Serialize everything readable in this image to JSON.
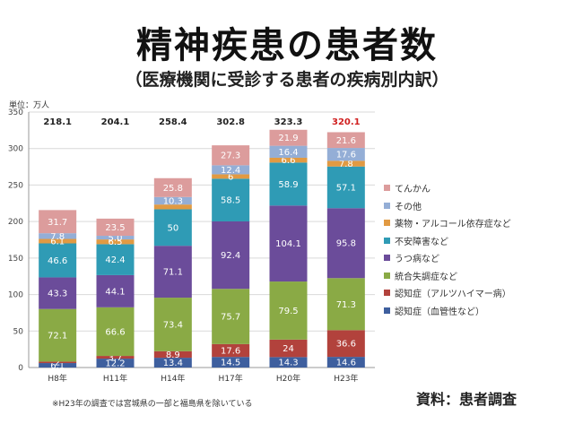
{
  "title": "精神疾患の患者数",
  "subtitle": "（医療機関に受診する患者の疾病別内訳）",
  "unit_label": "単位：万人",
  "footnote": "※H23年の調査では宮城県の一部と福島県を除いている",
  "source": "資料：患者調査",
  "chart_data": {
    "type": "bar",
    "stacked": true,
    "categories": [
      "H8年",
      "H11年",
      "H14年",
      "H17年",
      "H20年",
      "H23年"
    ],
    "totals": [
      "218.1",
      "204.1",
      "258.4",
      "302.8",
      "323.3",
      "320.1"
    ],
    "ylim": [
      0,
      350
    ],
    "yticks": [
      "0",
      "50",
      "100",
      "150",
      "200",
      "250",
      "300",
      "350"
    ],
    "series": [
      {
        "name": "認知症（血管性など）",
        "color": "#3e5f9e",
        "values": [
          6.1,
          12.2,
          13.4,
          14.5,
          14.3,
          14.6
        ],
        "labels": [
          "6.1",
          "12.2",
          "13.4",
          "14.5",
          "14.3",
          "14.6"
        ]
      },
      {
        "name": "認知症（アルツハイマー病）",
        "color": "#b2423c",
        "values": [
          2,
          3.7,
          8.9,
          17.6,
          24,
          36.6
        ],
        "labels": [
          "2",
          "3.7",
          "8.9",
          "17.6",
          "24",
          "36.6"
        ]
      },
      {
        "name": "統合失調症など",
        "color": "#8aaa45",
        "values": [
          72.1,
          66.6,
          73.4,
          75.7,
          79.5,
          71.3
        ],
        "labels": [
          "72.1",
          "66.6",
          "73.4",
          "75.7",
          "79.5",
          "71.3"
        ]
      },
      {
        "name": "うつ病など",
        "color": "#6b4c9a",
        "values": [
          43.3,
          44.1,
          71.1,
          92.4,
          104.1,
          95.8
        ],
        "labels": [
          "43.3",
          "44.1",
          "71.1",
          "92.4",
          "104.1",
          "95.8"
        ]
      },
      {
        "name": "不安障害など",
        "color": "#2f9bb5",
        "values": [
          46.6,
          42.4,
          50,
          58.5,
          58.9,
          57.1
        ],
        "labels": [
          "46.6",
          "42.4",
          "50",
          "58.5",
          "58.9",
          "57.1"
        ]
      },
      {
        "name": "薬物・アルコール依存症など",
        "color": "#e19a43",
        "values": [
          6.1,
          6.5,
          6.5,
          6,
          6.6,
          7.8
        ],
        "labels": [
          "6.1",
          "6.5",
          "",
          "6",
          "6.6",
          "7.8"
        ]
      },
      {
        "name": "その他",
        "color": "#94aed6",
        "values": [
          7.8,
          5,
          10.3,
          12.4,
          16.4,
          17.6
        ],
        "labels": [
          "7.8",
          "5.0",
          "10.3",
          "12.4",
          "16.4",
          "17.6"
        ]
      },
      {
        "name": "てんかん",
        "color": "#dc9c9c",
        "values": [
          31.7,
          23.5,
          25.8,
          27.3,
          21.9,
          21.6
        ],
        "labels": [
          "31.7",
          "23.5",
          "25.8",
          "27.3",
          "21.9",
          "21.6"
        ]
      }
    ],
    "legend_placement": "right",
    "highlight_total_color": "#d02020"
  }
}
